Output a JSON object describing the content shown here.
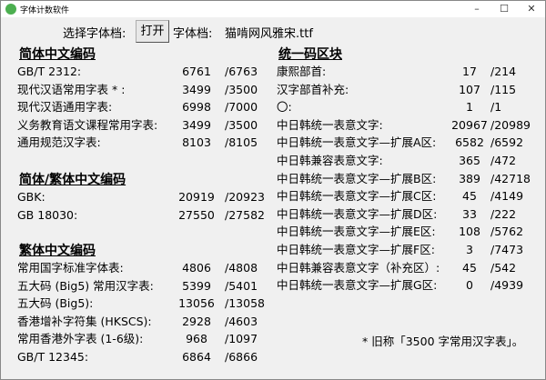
{
  "window": {
    "title": "字体计数软件",
    "minimize": "–",
    "maximize": "☐",
    "close": "✕"
  },
  "toolbar": {
    "select_label": "选择字体档:",
    "open_button": "打开",
    "font_label": "字体档:",
    "font_file": "猫啃网风雅宋.ttf"
  },
  "sections": [
    {
      "heading": "简体中文编码",
      "rows": [
        {
          "label": "GB/T 2312:",
          "count": "6761",
          "total": "/6763"
        },
        {
          "label": "现代汉语常用字表 * :",
          "count": "3499",
          "total": "/3500"
        },
        {
          "label": "现代汉语通用字表:",
          "count": "6998",
          "total": "/7000"
        },
        {
          "label": "义务教育语文课程常用字表:",
          "count": "3499",
          "total": "/3500"
        },
        {
          "label": "通用规范汉字表:",
          "count": "8103",
          "total": "/8105"
        }
      ]
    },
    {
      "heading": "简体/繁体中文编码",
      "rows": [
        {
          "label": "GBK:",
          "count": "20919",
          "total": "/20923"
        },
        {
          "label": "GB 18030:",
          "count": "27550",
          "total": "/27582"
        }
      ]
    },
    {
      "heading": "繁体中文编码",
      "rows": [
        {
          "label": "常用国字标准字体表:",
          "count": "4806",
          "total": "/4808"
        },
        {
          "label": "五大码 (Big5) 常用汉字表:",
          "count": "5399",
          "total": "/5401"
        },
        {
          "label": "五大码 (Big5):",
          "count": "13056",
          "total": "/13058"
        },
        {
          "label": "香港增补字符集 (HKSCS):",
          "count": "2928",
          "total": "/4603"
        },
        {
          "label": "常用香港外字表 (1-6级):",
          "count": "968",
          "total": "/1097"
        },
        {
          "label": "GB/T 12345:",
          "count": "6864",
          "total": "/6866"
        }
      ]
    },
    {
      "heading": "统一码区块",
      "rows": [
        {
          "label": "康熙部首:",
          "count": "17",
          "total": "/214"
        },
        {
          "label": "汉字部首补充:",
          "count": "107",
          "total": "/115"
        },
        {
          "label": "〇:",
          "count": "1",
          "total": "/1"
        },
        {
          "label": "中日韩统一表意文字:",
          "count": "20967",
          "total": "/20989"
        },
        {
          "label": "中日韩统一表意文字—扩展A区:",
          "count": "6582",
          "total": "/6592"
        },
        {
          "label": "中日韩兼容表意文字:",
          "count": "365",
          "total": "/472"
        },
        {
          "label": "中日韩统一表意文字—扩展B区:",
          "count": "389",
          "total": "/42718"
        },
        {
          "label": "中日韩统一表意文字—扩展C区:",
          "count": "45",
          "total": "/4149"
        },
        {
          "label": "中日韩统一表意文字—扩展D区:",
          "count": "33",
          "total": "/222"
        },
        {
          "label": "中日韩统一表意文字—扩展E区:",
          "count": "108",
          "total": "/5762"
        },
        {
          "label": "中日韩统一表意文字—扩展F区:",
          "count": "3",
          "total": "/7473"
        },
        {
          "label": "中日韩兼容表意文字（补充区）:",
          "count": "45",
          "total": "/542"
        },
        {
          "label": "中日韩统一表意文字—扩展G区:",
          "count": "0",
          "total": "/4939"
        }
      ]
    }
  ],
  "footnote": "* 旧称「3500 字常用汉字表」。"
}
